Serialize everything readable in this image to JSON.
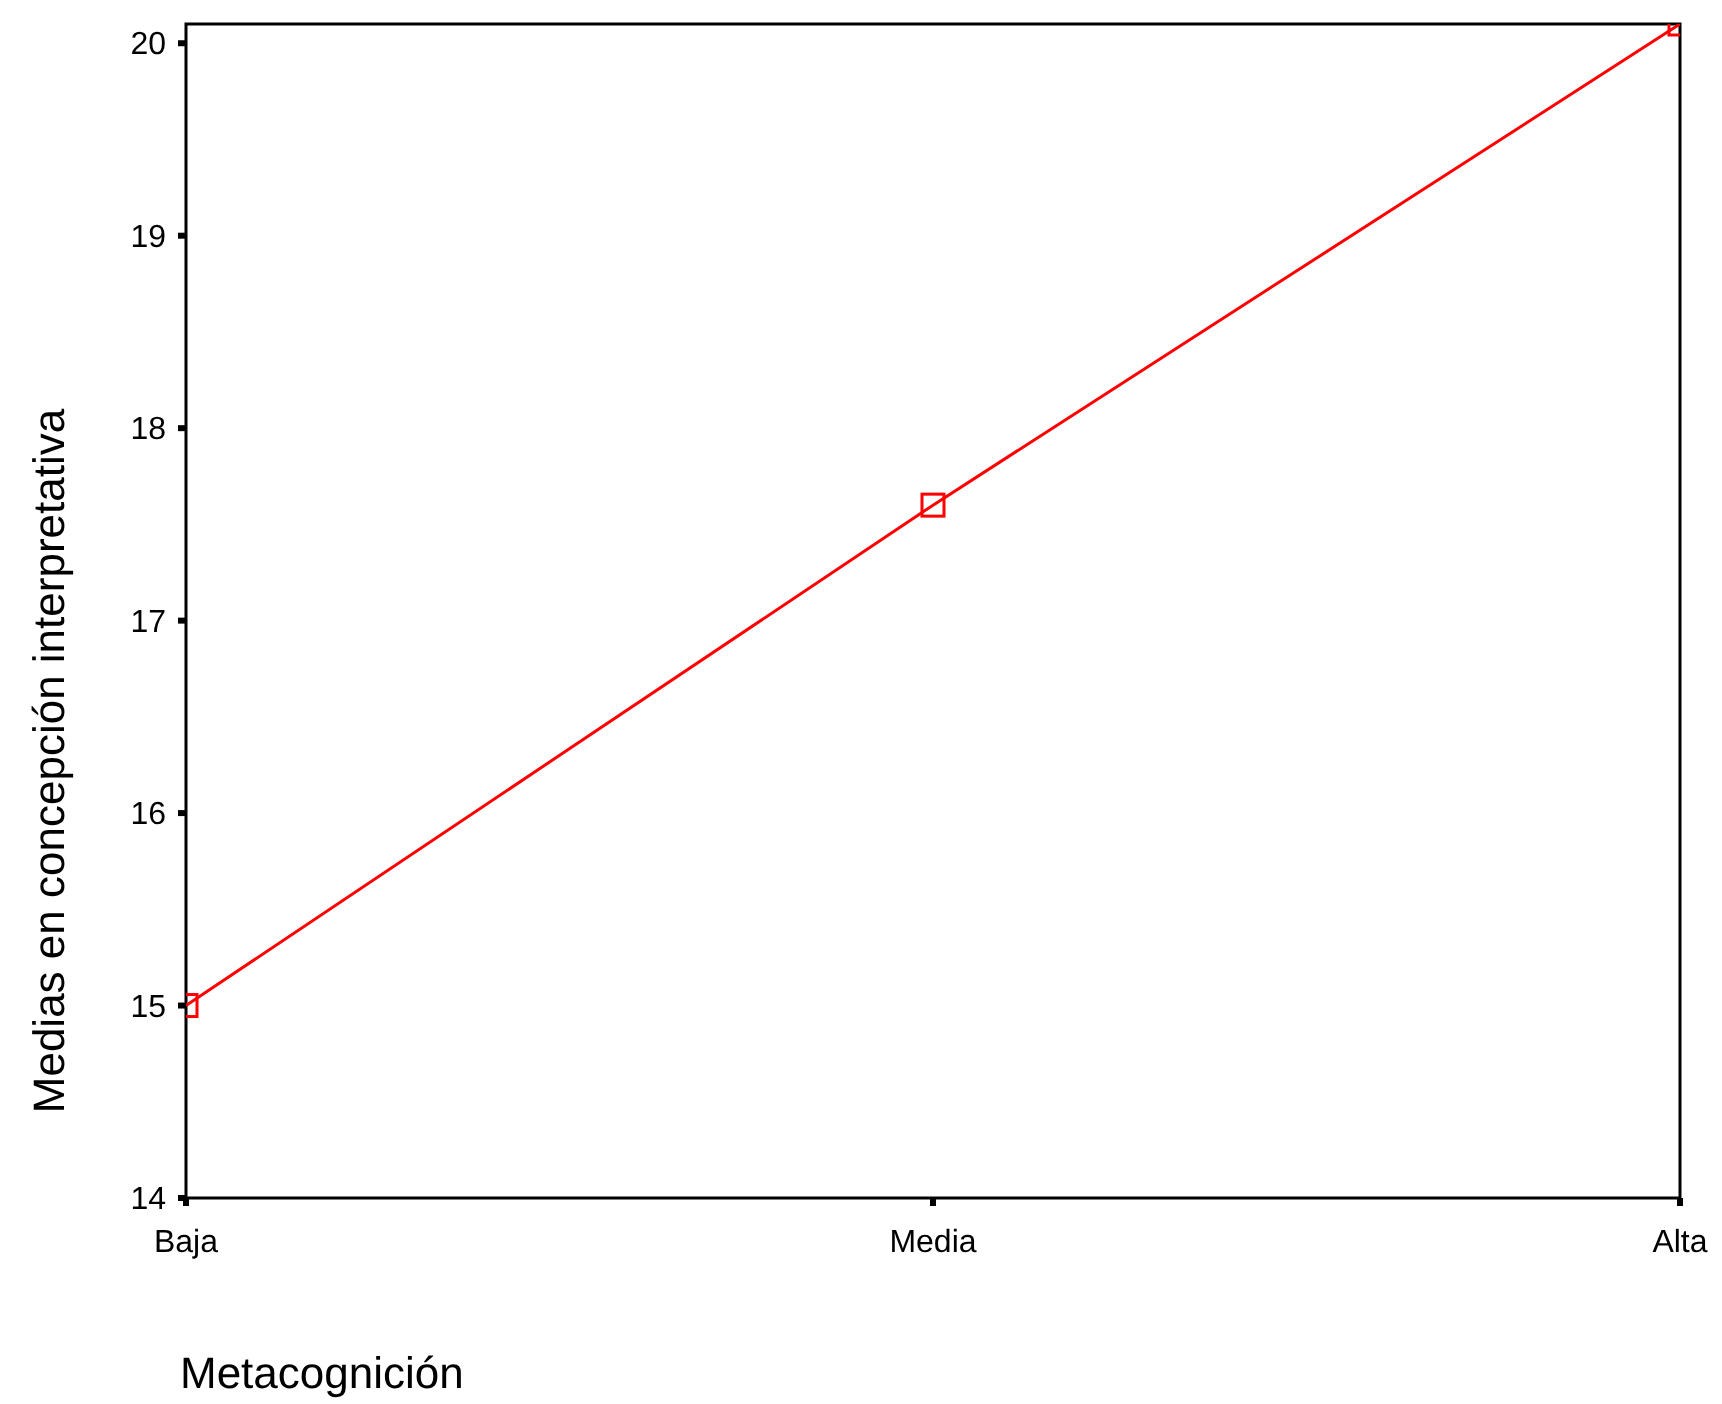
{
  "chart_data": {
    "type": "line",
    "xlabel": "Metacognición",
    "ylabel": "Medias en concepción interpretativa",
    "categories": [
      "Baja",
      "Media",
      "Alta"
    ],
    "series": [
      {
        "color": "#ff0000",
        "values": [
          15.0,
          17.6,
          20.1
        ]
      }
    ],
    "ylim": [
      14,
      20.1
    ],
    "yticks": [
      14,
      15,
      16,
      17,
      18,
      19,
      20
    ],
    "marker": "square",
    "grid": false
  }
}
